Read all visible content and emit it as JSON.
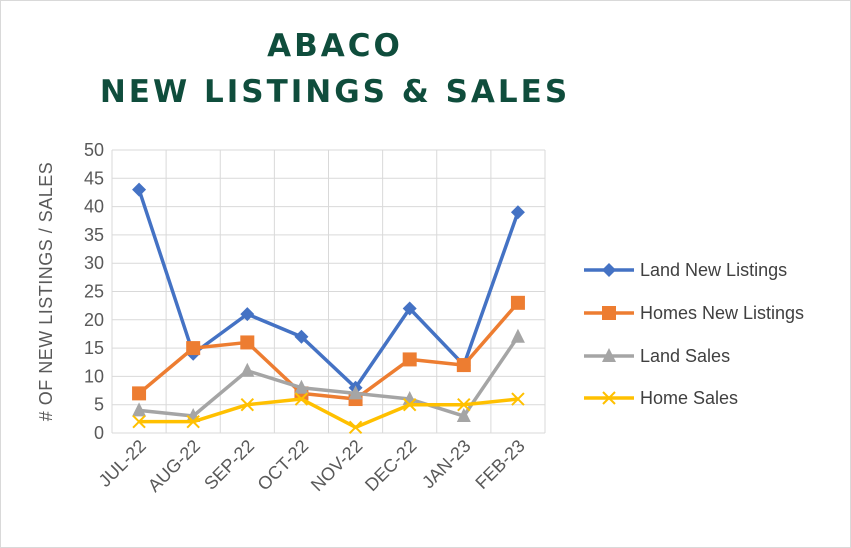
{
  "chart_data": {
    "type": "line",
    "title_lines": [
      "ABACO",
      "NEW LISTINGS & SALES"
    ],
    "xlabel": "",
    "ylabel": "# OF NEW LISTINGS / SALES",
    "categories": [
      "JUL-22",
      "AUG-22",
      "SEP-22",
      "OCT-22",
      "NOV-22",
      "DEC-22",
      "JAN-23",
      "FEB-23"
    ],
    "ylim": [
      0,
      50
    ],
    "yticks": [
      0,
      5,
      10,
      15,
      20,
      25,
      30,
      35,
      40,
      45,
      50
    ],
    "grid": true,
    "legend_position": "right",
    "series": [
      {
        "name": "Land New Listings",
        "values": [
          43,
          14,
          21,
          17,
          8,
          22,
          12,
          39
        ],
        "color": "#4472c4",
        "marker": "diamond"
      },
      {
        "name": "Homes New Listings",
        "values": [
          7,
          15,
          16,
          7,
          6,
          13,
          12,
          23
        ],
        "color": "#ed7d31",
        "marker": "square"
      },
      {
        "name": "Land Sales",
        "values": [
          4,
          3,
          11,
          8,
          7,
          6,
          3,
          17
        ],
        "color": "#a5a5a5",
        "marker": "triangle"
      },
      {
        "name": "Home Sales",
        "values": [
          2,
          2,
          5,
          6,
          1,
          5,
          5,
          6
        ],
        "color": "#ffc000",
        "marker": "x"
      }
    ]
  }
}
